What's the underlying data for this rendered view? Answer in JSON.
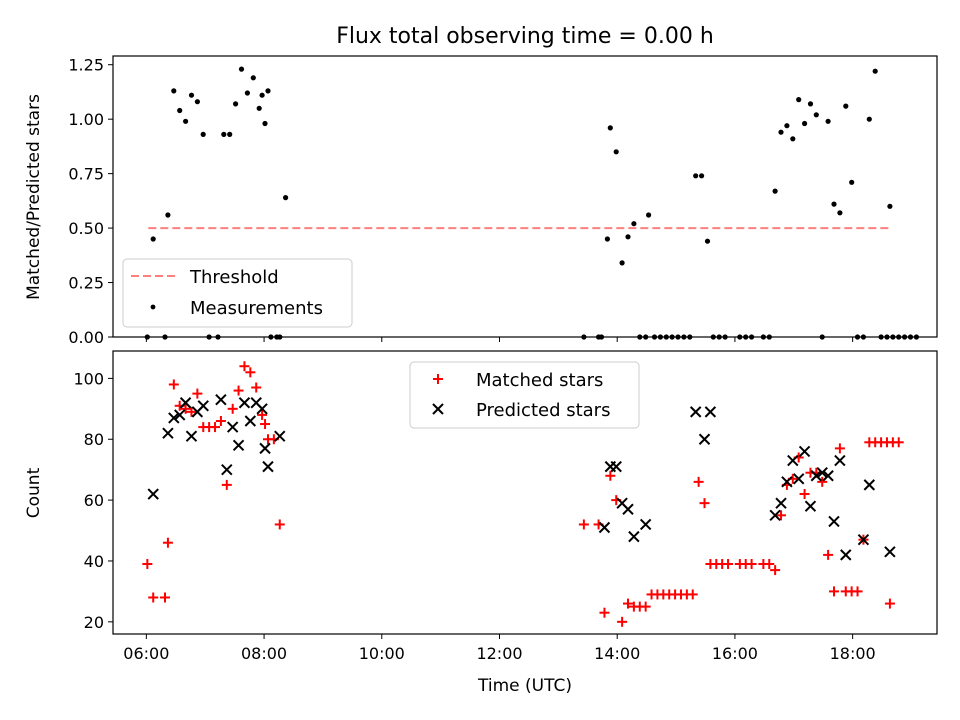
{
  "chart_data": [
    {
      "type": "scatter",
      "title": "Flux total observing time = 0.00 h",
      "xlabel": "",
      "ylabel": "Matched/Predicted stars",
      "xlim": [
        "05:26",
        "19:26"
      ],
      "ylim": [
        0.0,
        1.29
      ],
      "x_ticks": [
        "06:00",
        "08:00",
        "10:00",
        "12:00",
        "14:00",
        "16:00",
        "18:00"
      ],
      "y_ticks": [
        "0.00",
        "0.25",
        "0.50",
        "0.75",
        "1.00",
        "1.25"
      ],
      "legend": {
        "placement": "lower-left",
        "entries": [
          "Threshold",
          "Measurements"
        ]
      },
      "threshold": {
        "name": "Threshold",
        "value": 0.5,
        "x_range": [
          "06:02",
          "18:40"
        ],
        "color": "#ff7f7f"
      },
      "series": [
        {
          "name": "Measurements",
          "color": "#000000",
          "points": [
            [
              "06:01",
              0.0
            ],
            [
              "06:07",
              0.45
            ],
            [
              "06:19",
              0.0
            ],
            [
              "06:22",
              0.56
            ],
            [
              "06:28",
              1.13
            ],
            [
              "06:34",
              1.04
            ],
            [
              "06:40",
              0.99
            ],
            [
              "06:46",
              1.11
            ],
            [
              "06:52",
              1.08
            ],
            [
              "06:58",
              0.93
            ],
            [
              "07:04",
              0.0
            ],
            [
              "07:13",
              0.0
            ],
            [
              "07:19",
              0.93
            ],
            [
              "07:25",
              0.93
            ],
            [
              "07:31",
              1.07
            ],
            [
              "07:37",
              1.23
            ],
            [
              "07:43",
              1.12
            ],
            [
              "07:49",
              1.19
            ],
            [
              "07:55",
              1.05
            ],
            [
              "08:01",
              0.98
            ],
            [
              "07:58",
              1.11
            ],
            [
              "08:04",
              1.13
            ],
            [
              "08:07",
              0.0
            ],
            [
              "08:13",
              0.0
            ],
            [
              "08:16",
              0.0
            ],
            [
              "08:22",
              0.64
            ],
            [
              "13:26",
              0.0
            ],
            [
              "13:41",
              0.0
            ],
            [
              "13:44",
              0.0
            ],
            [
              "13:50",
              0.45
            ],
            [
              "13:53",
              0.96
            ],
            [
              "13:59",
              0.85
            ],
            [
              "14:05",
              0.34
            ],
            [
              "14:11",
              0.46
            ],
            [
              "14:17",
              0.52
            ],
            [
              "14:23",
              0.0
            ],
            [
              "14:29",
              0.0
            ],
            [
              "14:32",
              0.56
            ],
            [
              "14:38",
              0.0
            ],
            [
              "14:44",
              0.0
            ],
            [
              "14:50",
              0.0
            ],
            [
              "14:56",
              0.0
            ],
            [
              "15:02",
              0.0
            ],
            [
              "15:08",
              0.0
            ],
            [
              "15:14",
              0.0
            ],
            [
              "15:20",
              0.74
            ],
            [
              "15:26",
              0.74
            ],
            [
              "15:32",
              0.44
            ],
            [
              "15:38",
              0.0
            ],
            [
              "15:44",
              0.0
            ],
            [
              "15:50",
              0.0
            ],
            [
              "16:05",
              0.0
            ],
            [
              "16:11",
              0.0
            ],
            [
              "16:17",
              0.0
            ],
            [
              "16:29",
              0.0
            ],
            [
              "16:35",
              0.0
            ],
            [
              "16:41",
              0.67
            ],
            [
              "16:47",
              0.94
            ],
            [
              "16:53",
              0.97
            ],
            [
              "16:59",
              0.91
            ],
            [
              "17:05",
              1.09
            ],
            [
              "17:11",
              0.98
            ],
            [
              "17:17",
              1.07
            ],
            [
              "17:23",
              1.02
            ],
            [
              "17:29",
              0.0
            ],
            [
              "17:35",
              0.99
            ],
            [
              "17:41",
              0.61
            ],
            [
              "17:47",
              0.57
            ],
            [
              "17:53",
              1.06
            ],
            [
              "17:59",
              0.71
            ],
            [
              "18:05",
              0.0
            ],
            [
              "18:11",
              0.0
            ],
            [
              "18:17",
              1.0
            ],
            [
              "18:23",
              1.22
            ],
            [
              "18:29",
              0.0
            ],
            [
              "18:35",
              0.0
            ],
            [
              "18:41",
              0.0
            ],
            [
              "18:47",
              0.0
            ],
            [
              "18:53",
              0.0
            ],
            [
              "18:59",
              0.0
            ],
            [
              "18:65",
              0.0
            ],
            [
              "18:38",
              0.6
            ]
          ]
        }
      ]
    },
    {
      "type": "scatter",
      "title": "",
      "xlabel": "Time (UTC)",
      "ylabel": "Count",
      "xlim": [
        "05:26",
        "19:26"
      ],
      "ylim": [
        16,
        109
      ],
      "x_ticks": [
        "06:00",
        "08:00",
        "10:00",
        "12:00",
        "14:00",
        "16:00",
        "18:00"
      ],
      "y_ticks": [
        "20",
        "40",
        "60",
        "80",
        "100"
      ],
      "legend": {
        "placement": "top-center",
        "entries": [
          "Matched stars",
          "Predicted stars"
        ]
      },
      "series": [
        {
          "name": "Matched stars",
          "marker": "plus",
          "color": "#ff0000",
          "points": [
            [
              "06:01",
              39
            ],
            [
              "06:07",
              28
            ],
            [
              "06:19",
              28
            ],
            [
              "06:22",
              46
            ],
            [
              "06:28",
              98
            ],
            [
              "06:34",
              91
            ],
            [
              "06:40",
              90
            ],
            [
              "06:46",
              89
            ],
            [
              "06:52",
              95
            ],
            [
              "06:58",
              84
            ],
            [
              "07:04",
              84
            ],
            [
              "07:10",
              84
            ],
            [
              "07:16",
              86
            ],
            [
              "07:22",
              65
            ],
            [
              "07:28",
              90
            ],
            [
              "07:34",
              96
            ],
            [
              "07:40",
              104
            ],
            [
              "07:46",
              102
            ],
            [
              "07:52",
              97
            ],
            [
              "07:58",
              88
            ],
            [
              "08:01",
              85
            ],
            [
              "08:04",
              80
            ],
            [
              "08:10",
              80
            ],
            [
              "08:16",
              52
            ],
            [
              "13:26",
              52
            ],
            [
              "13:41",
              52
            ],
            [
              "13:47",
              23
            ],
            [
              "13:53",
              68
            ],
            [
              "13:59",
              60
            ],
            [
              "14:05",
              20
            ],
            [
              "14:11",
              26
            ],
            [
              "14:17",
              25
            ],
            [
              "14:23",
              25
            ],
            [
              "14:29",
              25
            ],
            [
              "14:35",
              29
            ],
            [
              "14:41",
              29
            ],
            [
              "14:47",
              29
            ],
            [
              "14:53",
              29
            ],
            [
              "14:59",
              29
            ],
            [
              "15:05",
              29
            ],
            [
              "15:11",
              29
            ],
            [
              "15:17",
              29
            ],
            [
              "15:23",
              66
            ],
            [
              "15:29",
              59
            ],
            [
              "15:35",
              39
            ],
            [
              "15:41",
              39
            ],
            [
              "15:47",
              39
            ],
            [
              "15:53",
              39
            ],
            [
              "16:05",
              39
            ],
            [
              "16:11",
              39
            ],
            [
              "16:17",
              39
            ],
            [
              "16:29",
              39
            ],
            [
              "16:35",
              39
            ],
            [
              "16:41",
              37
            ],
            [
              "16:47",
              55
            ],
            [
              "16:53",
              65
            ],
            [
              "16:59",
              67
            ],
            [
              "17:05",
              74
            ],
            [
              "17:11",
              62
            ],
            [
              "17:17",
              69
            ],
            [
              "17:23",
              69
            ],
            [
              "17:29",
              66
            ],
            [
              "17:35",
              42
            ],
            [
              "17:41",
              30
            ],
            [
              "17:47",
              77
            ],
            [
              "17:53",
              30
            ],
            [
              "17:59",
              30
            ],
            [
              "18:05",
              30
            ],
            [
              "18:11",
              47
            ],
            [
              "18:17",
              79
            ],
            [
              "18:23",
              79
            ],
            [
              "18:29",
              79
            ],
            [
              "18:35",
              79
            ],
            [
              "18:41",
              79
            ],
            [
              "18:47",
              79
            ],
            [
              "18:38",
              26
            ]
          ]
        },
        {
          "name": "Predicted stars",
          "marker": "x",
          "color": "#000000",
          "points": [
            [
              "06:07",
              62
            ],
            [
              "06:22",
              82
            ],
            [
              "06:28",
              87
            ],
            [
              "06:34",
              88
            ],
            [
              "06:40",
              92
            ],
            [
              "06:46",
              81
            ],
            [
              "06:52",
              89
            ],
            [
              "06:58",
              91
            ],
            [
              "07:16",
              93
            ],
            [
              "07:22",
              70
            ],
            [
              "07:28",
              84
            ],
            [
              "07:34",
              78
            ],
            [
              "07:40",
              92
            ],
            [
              "07:46",
              86
            ],
            [
              "07:52",
              92
            ],
            [
              "07:58",
              90
            ],
            [
              "08:01",
              77
            ],
            [
              "08:04",
              71
            ],
            [
              "08:16",
              81
            ],
            [
              "13:47",
              51
            ],
            [
              "13:53",
              71
            ],
            [
              "13:59",
              71
            ],
            [
              "14:05",
              59
            ],
            [
              "14:11",
              57
            ],
            [
              "14:17",
              48
            ],
            [
              "14:29",
              52
            ],
            [
              "15:20",
              89
            ],
            [
              "15:29",
              80
            ],
            [
              "15:35",
              89
            ],
            [
              "16:41",
              55
            ],
            [
              "16:47",
              59
            ],
            [
              "16:53",
              66
            ],
            [
              "16:59",
              73
            ],
            [
              "17:05",
              67
            ],
            [
              "17:11",
              76
            ],
            [
              "17:17",
              58
            ],
            [
              "17:23",
              68
            ],
            [
              "17:29",
              69
            ],
            [
              "17:35",
              68
            ],
            [
              "17:41",
              53
            ],
            [
              "17:47",
              73
            ],
            [
              "17:53",
              42
            ],
            [
              "18:11",
              47
            ],
            [
              "18:17",
              65
            ],
            [
              "18:38",
              43
            ]
          ]
        }
      ]
    }
  ]
}
